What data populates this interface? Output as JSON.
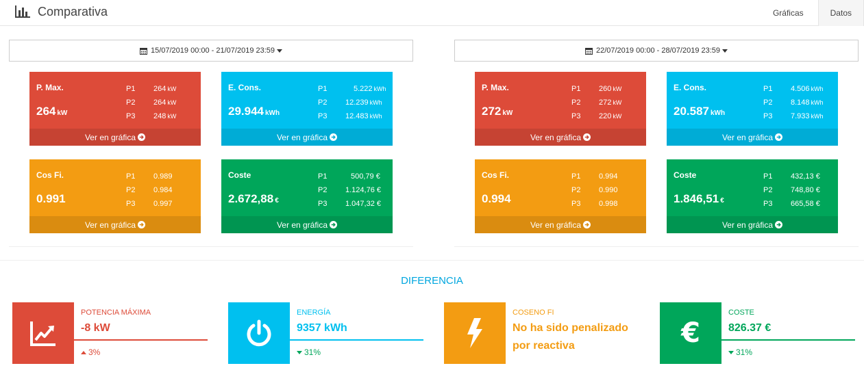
{
  "header": {
    "title": "Comparativa",
    "tabs": [
      {
        "label": "Gráficas",
        "active": false
      },
      {
        "label": "Datos",
        "active": true
      }
    ]
  },
  "periods": [
    {
      "range": "15/07/2019 00:00 - 21/07/2019 23:59",
      "cards": {
        "pmax": {
          "name": "P. Max.",
          "value": "264",
          "unit": "kW",
          "rows": [
            {
              "p": "P1",
              "v": "264",
              "u": "kW"
            },
            {
              "p": "P2",
              "v": "264",
              "u": "kW"
            },
            {
              "p": "P3",
              "v": "248",
              "u": "kW"
            }
          ]
        },
        "econs": {
          "name": "E. Cons.",
          "value": "29.944",
          "unit": "kWh",
          "rows": [
            {
              "p": "P1",
              "v": "5.222",
              "u": "kWh"
            },
            {
              "p": "P2",
              "v": "12.239",
              "u": "kWh"
            },
            {
              "p": "P3",
              "v": "12.483",
              "u": "kWh"
            }
          ]
        },
        "cosfi": {
          "name": "Cos Fi.",
          "value": "0.991",
          "unit": "",
          "rows": [
            {
              "p": "P1",
              "v": "0.989",
              "u": ""
            },
            {
              "p": "P2",
              "v": "0.984",
              "u": ""
            },
            {
              "p": "P3",
              "v": "0.997",
              "u": ""
            }
          ]
        },
        "coste": {
          "name": "Coste",
          "value": "2.672,88",
          "unit": "€",
          "rows": [
            {
              "p": "P1",
              "v": "500,79 €",
              "u": ""
            },
            {
              "p": "P2",
              "v": "1.124,76 €",
              "u": ""
            },
            {
              "p": "P3",
              "v": "1.047,32 €",
              "u": ""
            }
          ]
        }
      }
    },
    {
      "range": "22/07/2019 00:00 - 28/07/2019 23:59",
      "cards": {
        "pmax": {
          "name": "P. Max.",
          "value": "272",
          "unit": "kW",
          "rows": [
            {
              "p": "P1",
              "v": "260",
              "u": "kW"
            },
            {
              "p": "P2",
              "v": "272",
              "u": "kW"
            },
            {
              "p": "P3",
              "v": "220",
              "u": "kW"
            }
          ]
        },
        "econs": {
          "name": "E. Cons.",
          "value": "20.587",
          "unit": "kWh",
          "rows": [
            {
              "p": "P1",
              "v": "4.506",
              "u": "kWh"
            },
            {
              "p": "P2",
              "v": "8.148",
              "u": "kWh"
            },
            {
              "p": "P3",
              "v": "7.933",
              "u": "kWh"
            }
          ]
        },
        "cosfi": {
          "name": "Cos Fi.",
          "value": "0.994",
          "unit": "",
          "rows": [
            {
              "p": "P1",
              "v": "0.994",
              "u": ""
            },
            {
              "p": "P2",
              "v": "0.990",
              "u": ""
            },
            {
              "p": "P3",
              "v": "0.998",
              "u": ""
            }
          ]
        },
        "coste": {
          "name": "Coste",
          "value": "1.846,51",
          "unit": "€",
          "rows": [
            {
              "p": "P1",
              "v": "432,13 €",
              "u": ""
            },
            {
              "p": "P2",
              "v": "748,80 €",
              "u": ""
            },
            {
              "p": "P3",
              "v": "665,58 €",
              "u": ""
            }
          ]
        }
      }
    }
  ],
  "footer_link": "Ver en gráfica",
  "diferencia": {
    "title": "DIFERENCIA",
    "potencia": {
      "label": "POTENCIA MÁXIMA",
      "value": "-8 kW",
      "pct": "3%",
      "trend": "up",
      "icon": "trend-chart-icon",
      "color": "#dd4b39"
    },
    "energia": {
      "label": "ENERGÍA",
      "value": "9357 kWh",
      "pct": "31%",
      "trend": "down",
      "icon": "power-icon",
      "color": "#00c0ef"
    },
    "coseno": {
      "label": "COSENO FI",
      "value": "No ha sido penalizado por reactiva",
      "icon": "bolt-icon",
      "color": "#f39c12"
    },
    "coste": {
      "label": "COSTE",
      "value": "826.37 €",
      "pct": "31%",
      "trend": "down",
      "icon": "euro-icon",
      "color": "#00a65a"
    }
  },
  "colors": {
    "red": "#dd4b39",
    "cyan": "#00c0ef",
    "orange": "#f39c12",
    "green": "#00a65a",
    "accent": "#00a6df"
  }
}
